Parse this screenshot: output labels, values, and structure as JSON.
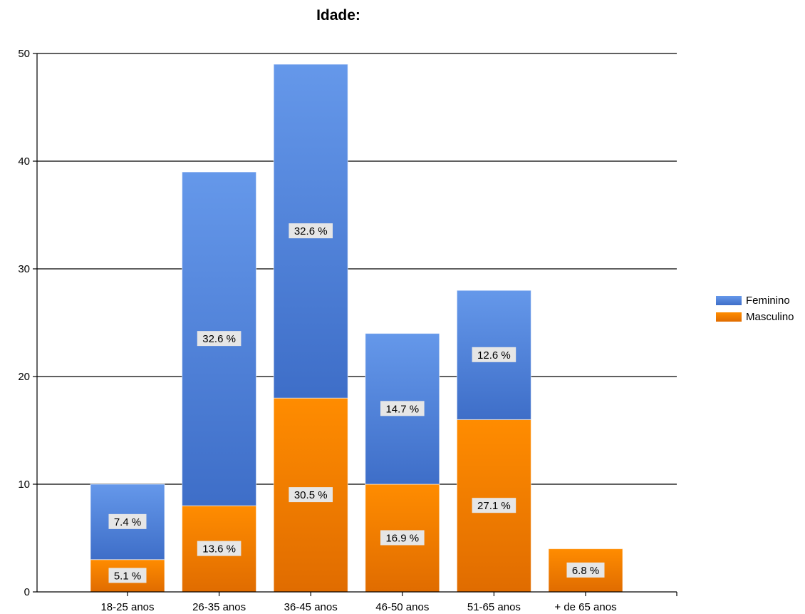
{
  "chart_data": {
    "type": "bar",
    "stacked": true,
    "title": "Idade:",
    "categories": [
      "18-25 anos",
      "26-35 anos",
      "36-45 anos",
      "46-50 anos",
      "51-65 anos",
      "+ de 65 anos"
    ],
    "series": [
      {
        "name": "Masculino",
        "color": "#f07f00",
        "values": [
          3,
          8,
          18,
          10,
          16,
          4
        ],
        "labels": [
          "5.1 %",
          "13.6 %",
          "30.5 %",
          "16.9 %",
          "27.1 %",
          "6.8 %"
        ]
      },
      {
        "name": "Feminino",
        "color": "#4a7bd6",
        "values": [
          7,
          31,
          31,
          14,
          12,
          0
        ],
        "labels": [
          "7.4 %",
          "32.6 %",
          "32.6 %",
          "14.7 %",
          "12.6 %",
          ""
        ]
      }
    ],
    "ylim": [
      0,
      50
    ],
    "yticks": [
      0,
      10,
      20,
      30,
      40,
      50
    ],
    "grid": true,
    "legend": "right"
  }
}
